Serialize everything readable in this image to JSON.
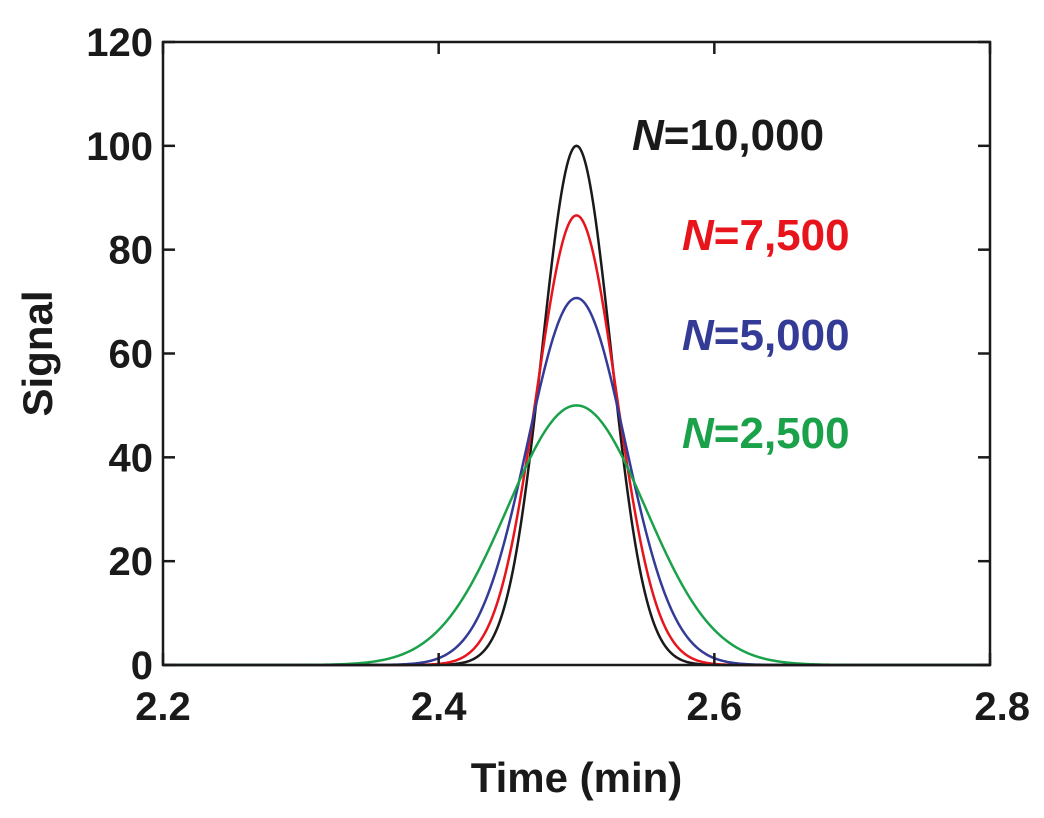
{
  "chart_data": {
    "type": "line",
    "title": "",
    "xlabel": "Time (min)",
    "ylabel": "Signal",
    "xlim": [
      2.2,
      2.8
    ],
    "ylim": [
      0,
      120
    ],
    "xticks": [
      2.2,
      2.4,
      2.6,
      2.8
    ],
    "xtick_labels": [
      "2.2",
      "2.4",
      "2.6",
      "2.8"
    ],
    "yticks": [
      0,
      20,
      40,
      60,
      80,
      100,
      120
    ],
    "ytick_labels": [
      "0",
      "20",
      "40",
      "60",
      "80",
      "100",
      "120"
    ],
    "grid": false,
    "legend_placement": "top-right",
    "peak_center_min": 2.5,
    "series": [
      {
        "name": "N=10,000",
        "label_prefix": "N",
        "label_suffix": "=10,000",
        "color": "#1a1a1a",
        "peak_height": 100,
        "sigma_min": 0.025
      },
      {
        "name": "N=7,500",
        "label_prefix": "N",
        "label_suffix": "=7,500",
        "color": "#e8141c",
        "peak_height": 86.6,
        "sigma_min": 0.0289
      },
      {
        "name": "N=5,000",
        "label_prefix": "N",
        "label_suffix": "=5,000",
        "color": "#343b96",
        "peak_height": 70.7,
        "sigma_min": 0.0354
      },
      {
        "name": "N=2,500",
        "label_prefix": "N",
        "label_suffix": "=2,500",
        "color": "#1aa14a",
        "peak_height": 50,
        "sigma_min": 0.05
      }
    ]
  }
}
